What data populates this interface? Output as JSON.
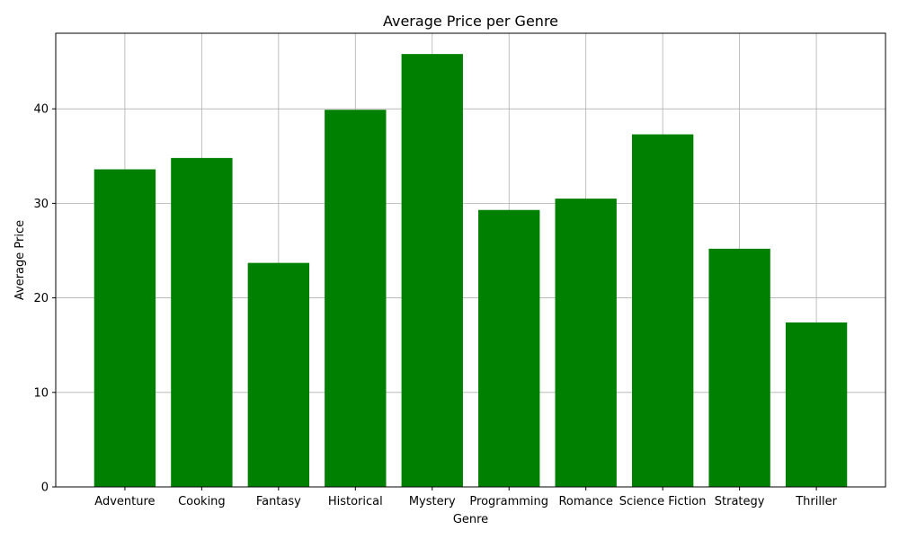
{
  "chart_data": {
    "type": "bar",
    "title": "Average Price per Genre",
    "xlabel": "Genre",
    "ylabel": "Average Price",
    "categories": [
      "Adventure",
      "Cooking",
      "Fantasy",
      "Historical",
      "Mystery",
      "Programming",
      "Romance",
      "Science Fiction",
      "Strategy",
      "Thriller"
    ],
    "values": [
      33.6,
      34.8,
      23.7,
      39.9,
      45.8,
      29.3,
      30.5,
      37.3,
      25.2,
      17.4
    ],
    "ylim": [
      0,
      48
    ],
    "yticks": [
      0,
      10,
      20,
      30,
      40
    ],
    "grid": true,
    "bar_color": "#008000",
    "grid_color": "#b0b0b0",
    "axis_color": "#000000"
  }
}
